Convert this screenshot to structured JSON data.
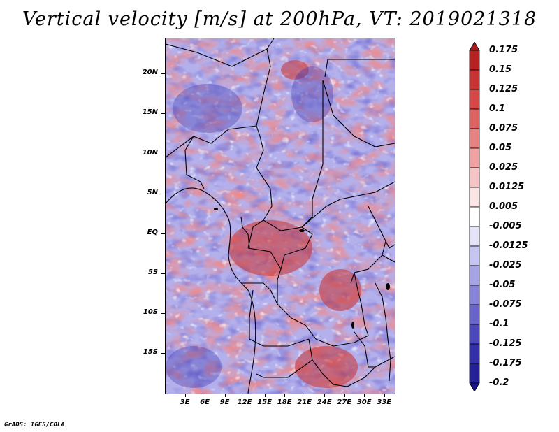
{
  "title": "Vertical velocity [m/s] at 200hPa, VT: 2019021318",
  "credit": "GrADS: IGES/COLA",
  "map": {
    "lat_labels": [
      "20N",
      "15N",
      "10N",
      "5N",
      "EQ",
      "5S",
      "10S",
      "15S"
    ],
    "lat_values": [
      20,
      15,
      10,
      5,
      0,
      -5,
      -10,
      -15
    ],
    "lon_labels": [
      "3E",
      "6E",
      "9E",
      "12E",
      "15E",
      "18E",
      "21E",
      "24E",
      "27E",
      "30E",
      "33E"
    ],
    "lon_values": [
      3,
      6,
      9,
      12,
      15,
      18,
      21,
      24,
      27,
      30,
      33
    ],
    "lon_range": [
      0,
      34.5
    ],
    "lat_range": [
      -20,
      24.5
    ]
  },
  "colorbar": {
    "labels": [
      "0.175",
      "0.15",
      "0.125",
      "0.1",
      "0.075",
      "0.05",
      "0.025",
      "0.0125",
      "0.005",
      "-0.005",
      "-0.0125",
      "-0.025",
      "-0.05",
      "-0.075",
      "-0.1",
      "-0.125",
      "-0.175",
      "-0.2"
    ],
    "colors": [
      "#a51a1a",
      "#b82222",
      "#c93232",
      "#d74747",
      "#e06363",
      "#e88282",
      "#f0a2a2",
      "#f6c4c4",
      "#fbe4e4",
      "#ffffff",
      "#e4e3f8",
      "#c6c4f0",
      "#a6a3e6",
      "#8884da",
      "#6864cc",
      "#4b47bc",
      "#3430ab",
      "#241f97",
      "#1a1488"
    ]
  }
}
